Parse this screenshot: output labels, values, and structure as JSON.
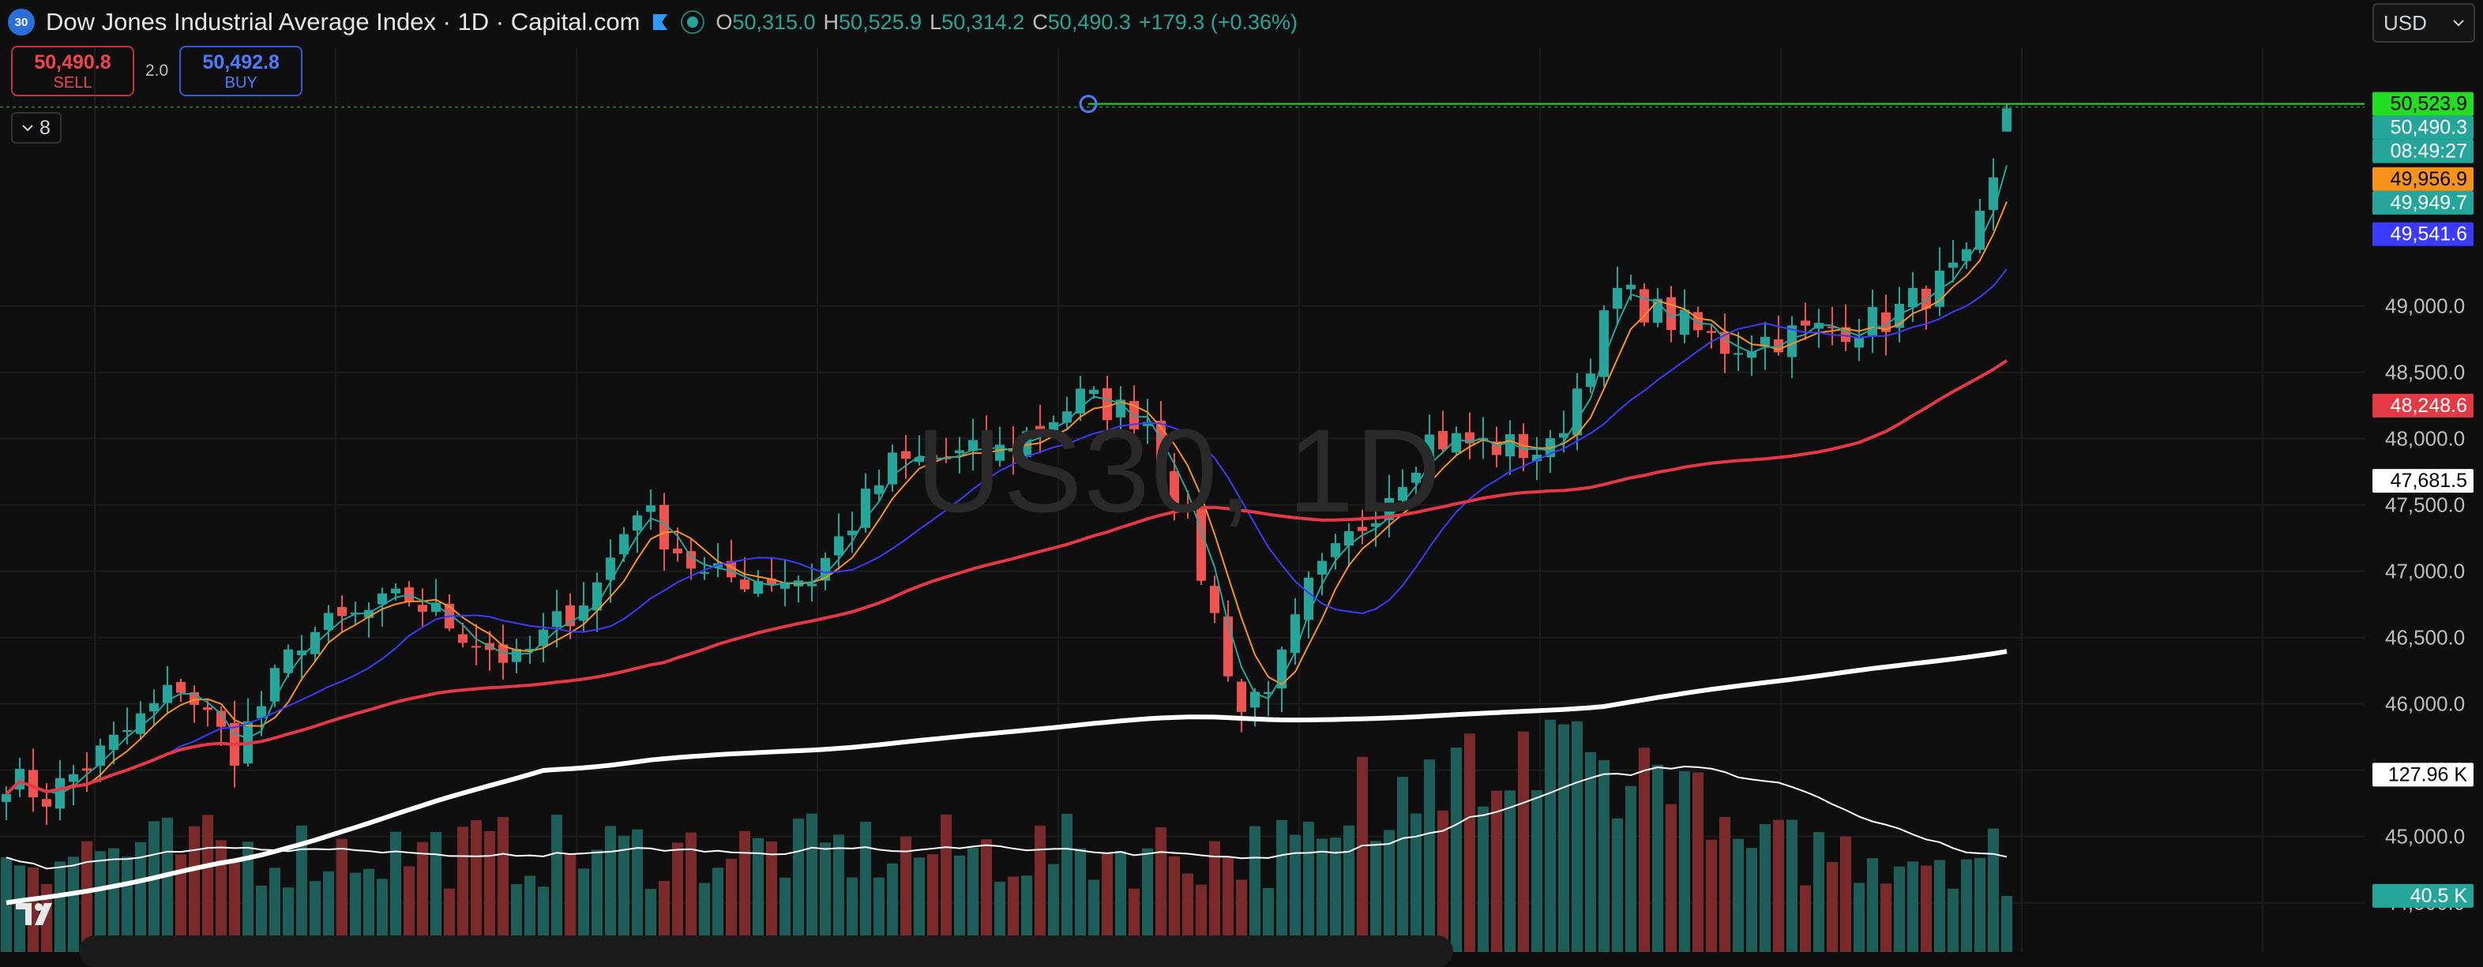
{
  "header": {
    "symbol_badge": "30",
    "title": "Dow Jones Industrial Average Index · 1D · Capital.com",
    "ohlc": {
      "o_label": "O",
      "o_value": "50,315.0",
      "h_label": "H",
      "h_value": "50,525.9",
      "l_label": "L",
      "l_value": "50,314.2",
      "c_label": "C",
      "c_value": "50,490.3",
      "change": "+179.3 (+0.36%)"
    }
  },
  "trade": {
    "sell_price": "50,490.8",
    "sell_label": "SELL",
    "spread": "2.0",
    "buy_price": "50,492.8",
    "buy_label": "BUY"
  },
  "indicators_toggle": {
    "count": "8"
  },
  "currency": {
    "selected": "USD"
  },
  "watermark": "US30, 1D",
  "colors": {
    "background": "#0f0f0f",
    "up": "#26a69a",
    "down": "#ef5350",
    "ma_fast_orange": "#f7931a",
    "ma_green": "#26a69a",
    "ma_blue": "#3b3bff",
    "ma_red": "#e53945",
    "ma_white": "#ffffff",
    "highlight_green": "#22dd22"
  },
  "chart_data": {
    "type": "candlestick",
    "instrument": "US30",
    "interval": "1D",
    "ylim": [
      44700,
      50950
    ],
    "y_ticks": [
      "49,000.0",
      "48,500.0",
      "48,000.0",
      "47,500.0",
      "47,000.0",
      "46,500.0",
      "46,000.0",
      "45,500.0",
      "45,000.0",
      "44,500.0"
    ],
    "y_tick_values": [
      49000,
      48500,
      48000,
      47500,
      47000,
      46500,
      46000,
      45500,
      45000,
      44500
    ],
    "axis_badges": [
      {
        "text": "50,523.9",
        "value": 50523.9,
        "color": "#22dd22",
        "text_color": "#000000"
      },
      {
        "text": "50,490.3",
        "value": 50490.3,
        "color": "#26a69a",
        "text_color": "#ffffff"
      },
      {
        "text": "08:49:27",
        "value": 50310,
        "color": "#26a69a",
        "text_color": "#ffffff"
      },
      {
        "text": "49,956.9",
        "value": 49956.9,
        "color": "#f7931a",
        "text_color": "#000000"
      },
      {
        "text": "49,949.7",
        "value": 49949.7,
        "color": "#26a69a",
        "text_color": "#ffffff"
      },
      {
        "text": "49,541.6",
        "value": 49541.6,
        "color": "#3b3bff",
        "text_color": "#ffffff"
      },
      {
        "text": "48,248.6",
        "value": 48248.6,
        "color": "#e53945",
        "text_color": "#ffffff"
      },
      {
        "text": "47,681.5",
        "value": 47681.5,
        "color": "#ffffff",
        "text_color": "#000000"
      }
    ],
    "volume_badges": [
      {
        "text": "127.96 K",
        "value": 127.96,
        "color": "#ffffff",
        "text_color": "#000000"
      },
      {
        "text": "40.5 K",
        "value": 40.5,
        "color": "#26a69a",
        "text_color": "#ffffff"
      }
    ],
    "volume_max": 180,
    "candle_count": 150,
    "anchors": [
      [
        0,
        45450
      ],
      [
        3,
        45300
      ],
      [
        8,
        45700
      ],
      [
        13,
        46150
      ],
      [
        17,
        45650
      ],
      [
        22,
        46500
      ],
      [
        30,
        46800
      ],
      [
        38,
        46300
      ],
      [
        44,
        46900
      ],
      [
        47,
        47500
      ],
      [
        52,
        46950
      ],
      [
        60,
        46950
      ],
      [
        66,
        47800
      ],
      [
        74,
        47900
      ],
      [
        80,
        48300
      ],
      [
        85,
        48150
      ],
      [
        88,
        47350
      ],
      [
        92,
        45950
      ],
      [
        95,
        46300
      ],
      [
        97,
        46850
      ],
      [
        106,
        48000
      ],
      [
        115,
        47900
      ],
      [
        120,
        49100
      ],
      [
        128,
        48700
      ],
      [
        140,
        48900
      ],
      [
        146,
        49300
      ],
      [
        148,
        49900
      ],
      [
        150,
        50490
      ]
    ],
    "moving_averages": [
      {
        "name": "",
        "color": "#f7931a",
        "period": 5
      },
      {
        "name": "",
        "color": "#26a69a",
        "period": 3
      },
      {
        "name": "",
        "color": "#3b3bff",
        "period": 13
      },
      {
        "name": "",
        "color": "#e53945",
        "period": 50
      },
      {
        "name": "",
        "color": "#ffffff",
        "period": 120
      }
    ],
    "volume_ma_period": 20,
    "high_marker_value": 50523.9,
    "grid": true
  }
}
